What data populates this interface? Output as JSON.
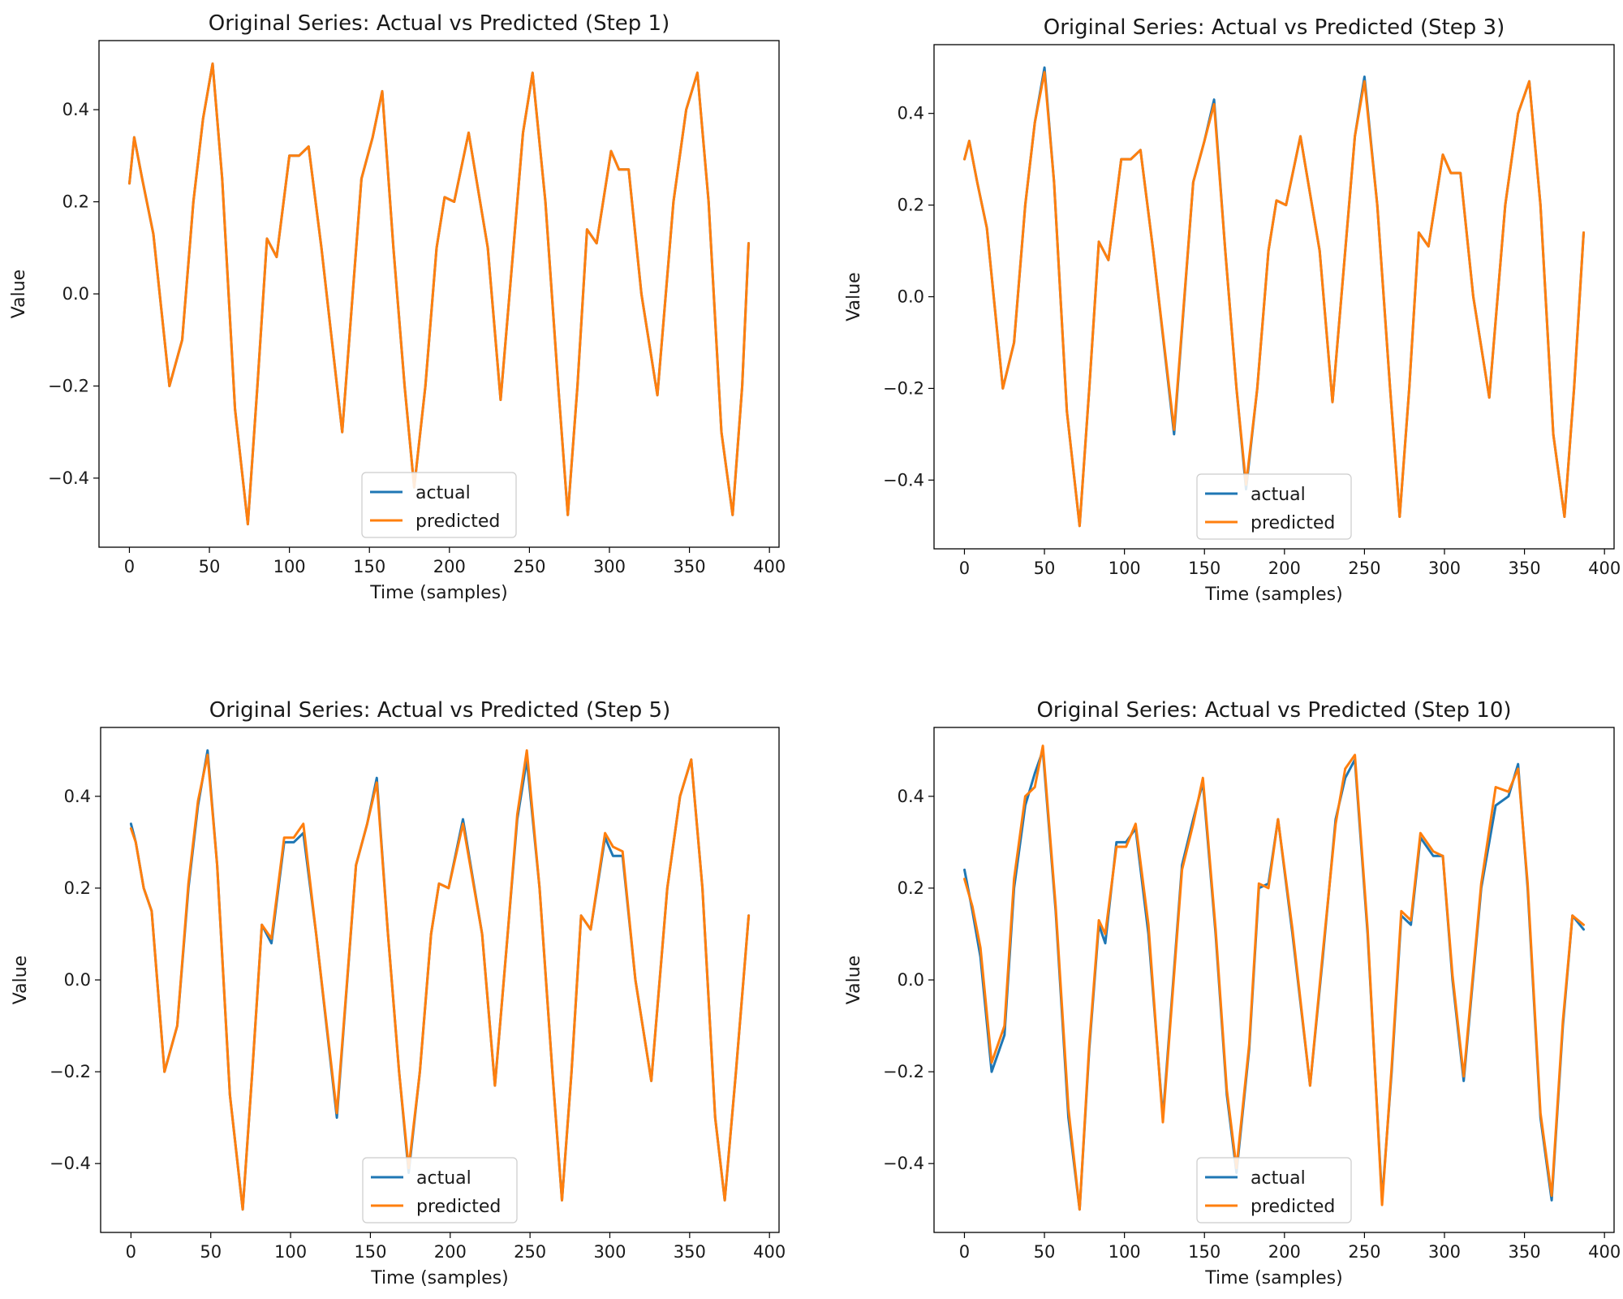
{
  "colors": {
    "actual": "#1f77b4",
    "predicted": "#ff7f0e"
  },
  "chart_data": [
    {
      "type": "line",
      "title": "Original Series: Actual vs Predicted (Step 1)",
      "xlabel": "Time (samples)",
      "ylabel": "Value",
      "xlim": [
        -19,
        406
      ],
      "ylim": [
        -0.55,
        0.55
      ],
      "xticks": [
        0,
        50,
        100,
        150,
        200,
        250,
        300,
        350,
        400
      ],
      "xtick_labels": [
        "0",
        "50",
        "100",
        "150",
        "200",
        "250",
        "300",
        "350",
        "400"
      ],
      "yticks": [
        -0.4,
        -0.2,
        0.0,
        0.2,
        0.4
      ],
      "ytick_labels": [
        "−0.4",
        "−0.2",
        "0.0",
        "0.2",
        "0.4"
      ],
      "legend": {
        "placement": "lower center",
        "entries": [
          "actual",
          "predicted"
        ]
      },
      "series": [
        {
          "name": "actual",
          "x": [
            0,
            3,
            8,
            15,
            25,
            33,
            40,
            46,
            52,
            58,
            66,
            74,
            80,
            86,
            92,
            100,
            106,
            112,
            120,
            133,
            145,
            152,
            158,
            165,
            172,
            178,
            185,
            192,
            197,
            203,
            212,
            224,
            232,
            240,
            246,
            252,
            260,
            268,
            274,
            280,
            286,
            292,
            301,
            306,
            312,
            320,
            330,
            340,
            348,
            355,
            362,
            370,
            377,
            383,
            387
          ],
          "values": [
            0.24,
            0.34,
            0.25,
            0.13,
            -0.2,
            -0.1,
            0.2,
            0.38,
            0.5,
            0.25,
            -0.25,
            -0.5,
            -0.2,
            0.12,
            0.08,
            0.3,
            0.3,
            0.32,
            0.1,
            -0.3,
            0.25,
            0.34,
            0.44,
            0.1,
            -0.2,
            -0.42,
            -0.2,
            0.1,
            0.21,
            0.2,
            0.35,
            0.1,
            -0.23,
            0.1,
            0.35,
            0.48,
            0.2,
            -0.2,
            -0.48,
            -0.2,
            0.14,
            0.11,
            0.31,
            0.27,
            0.27,
            0.0,
            -0.22,
            0.2,
            0.4,
            0.48,
            0.2,
            -0.3,
            -0.48,
            -0.2,
            0.11
          ]
        },
        {
          "name": "predicted",
          "x": [
            0,
            3,
            8,
            15,
            25,
            33,
            40,
            46,
            52,
            58,
            66,
            74,
            80,
            86,
            92,
            100,
            106,
            112,
            120,
            133,
            145,
            152,
            158,
            165,
            172,
            178,
            185,
            192,
            197,
            203,
            212,
            224,
            232,
            240,
            246,
            252,
            260,
            268,
            274,
            280,
            286,
            292,
            301,
            306,
            312,
            320,
            330,
            340,
            348,
            355,
            362,
            370,
            377,
            383,
            387
          ],
          "values": [
            0.24,
            0.34,
            0.25,
            0.13,
            -0.2,
            -0.1,
            0.2,
            0.38,
            0.5,
            0.25,
            -0.25,
            -0.5,
            -0.2,
            0.12,
            0.08,
            0.3,
            0.3,
            0.32,
            0.1,
            -0.3,
            0.25,
            0.34,
            0.44,
            0.1,
            -0.2,
            -0.42,
            -0.2,
            0.1,
            0.21,
            0.2,
            0.35,
            0.1,
            -0.23,
            0.1,
            0.35,
            0.48,
            0.2,
            -0.2,
            -0.48,
            -0.2,
            0.14,
            0.11,
            0.31,
            0.27,
            0.27,
            0.0,
            -0.22,
            0.2,
            0.4,
            0.48,
            0.2,
            -0.3,
            -0.48,
            -0.2,
            0.11
          ]
        }
      ]
    },
    {
      "type": "line",
      "title": "Original Series: Actual vs Predicted (Step 3)",
      "xlabel": "Time (samples)",
      "ylabel": "Value",
      "xlim": [
        -19,
        406
      ],
      "ylim": [
        -0.55,
        0.55
      ],
      "xticks": [
        0,
        50,
        100,
        150,
        200,
        250,
        300,
        350,
        400
      ],
      "xtick_labels": [
        "0",
        "50",
        "100",
        "150",
        "200",
        "250",
        "300",
        "350",
        "400"
      ],
      "yticks": [
        -0.4,
        -0.2,
        0.0,
        0.2,
        0.4
      ],
      "ytick_labels": [
        "−0.4",
        "−0.2",
        "0.0",
        "0.2",
        "0.4"
      ],
      "legend": {
        "placement": "lower center",
        "entries": [
          "actual",
          "predicted"
        ]
      },
      "series": [
        {
          "name": "actual",
          "x": [
            0,
            3,
            8,
            14,
            24,
            31,
            38,
            44,
            50,
            56,
            64,
            72,
            78,
            84,
            90,
            98,
            104,
            110,
            118,
            131,
            143,
            150,
            156,
            163,
            170,
            176,
            183,
            190,
            195,
            201,
            210,
            222,
            230,
            238,
            244,
            250,
            258,
            266,
            272,
            278,
            284,
            290,
            299,
            304,
            310,
            318,
            328,
            338,
            346,
            353,
            360,
            368,
            375,
            381,
            387
          ],
          "values": [
            0.3,
            0.34,
            0.25,
            0.15,
            -0.2,
            -0.1,
            0.2,
            0.38,
            0.5,
            0.25,
            -0.25,
            -0.5,
            -0.2,
            0.12,
            0.08,
            0.3,
            0.3,
            0.32,
            0.1,
            -0.3,
            0.25,
            0.34,
            0.43,
            0.1,
            -0.2,
            -0.42,
            -0.2,
            0.1,
            0.21,
            0.2,
            0.35,
            0.1,
            -0.23,
            0.1,
            0.35,
            0.48,
            0.2,
            -0.2,
            -0.48,
            -0.2,
            0.14,
            0.11,
            0.31,
            0.27,
            0.27,
            0.0,
            -0.22,
            0.2,
            0.4,
            0.47,
            0.2,
            -0.3,
            -0.48,
            -0.2,
            0.14
          ]
        },
        {
          "name": "predicted",
          "x": [
            0,
            3,
            8,
            14,
            24,
            31,
            38,
            44,
            50,
            56,
            64,
            72,
            78,
            84,
            90,
            98,
            104,
            110,
            118,
            131,
            143,
            150,
            156,
            163,
            170,
            176,
            183,
            190,
            195,
            201,
            210,
            222,
            230,
            238,
            244,
            250,
            258,
            266,
            272,
            278,
            284,
            290,
            299,
            304,
            310,
            318,
            328,
            338,
            346,
            353,
            360,
            368,
            375,
            381,
            387
          ],
          "values": [
            0.3,
            0.34,
            0.25,
            0.15,
            -0.2,
            -0.1,
            0.2,
            0.38,
            0.49,
            0.25,
            -0.25,
            -0.5,
            -0.2,
            0.12,
            0.08,
            0.3,
            0.3,
            0.32,
            0.1,
            -0.29,
            0.25,
            0.34,
            0.42,
            0.1,
            -0.2,
            -0.41,
            -0.2,
            0.1,
            0.21,
            0.2,
            0.35,
            0.1,
            -0.23,
            0.1,
            0.35,
            0.47,
            0.2,
            -0.2,
            -0.48,
            -0.2,
            0.14,
            0.11,
            0.31,
            0.27,
            0.27,
            0.0,
            -0.22,
            0.2,
            0.4,
            0.47,
            0.2,
            -0.3,
            -0.48,
            -0.2,
            0.14
          ]
        }
      ]
    },
    {
      "type": "line",
      "title": "Original Series: Actual vs Predicted (Step 5)",
      "xlabel": "Time (samples)",
      "ylabel": "Value",
      "xlim": [
        -19,
        406
      ],
      "ylim": [
        -0.55,
        0.55
      ],
      "xticks": [
        0,
        50,
        100,
        150,
        200,
        250,
        300,
        350,
        400
      ],
      "xtick_labels": [
        "0",
        "50",
        "100",
        "150",
        "200",
        "250",
        "300",
        "350",
        "400"
      ],
      "yticks": [
        -0.4,
        -0.2,
        0.0,
        0.2,
        0.4
      ],
      "ytick_labels": [
        "−0.4",
        "−0.2",
        "0.0",
        "0.2",
        "0.4"
      ],
      "legend": {
        "placement": "lower center",
        "entries": [
          "actual",
          "predicted"
        ]
      },
      "series": [
        {
          "name": "actual",
          "x": [
            0,
            3,
            8,
            13,
            21,
            29,
            36,
            42,
            48,
            54,
            62,
            70,
            76,
            82,
            88,
            96,
            102,
            108,
            116,
            129,
            141,
            148,
            154,
            161,
            168,
            174,
            181,
            188,
            193,
            199,
            208,
            220,
            228,
            236,
            242,
            248,
            256,
            264,
            270,
            276,
            282,
            288,
            297,
            302,
            308,
            316,
            326,
            336,
            344,
            351,
            358,
            366,
            372,
            379,
            387
          ],
          "values": [
            0.34,
            0.3,
            0.2,
            0.15,
            -0.2,
            -0.1,
            0.2,
            0.38,
            0.5,
            0.25,
            -0.25,
            -0.5,
            -0.2,
            0.12,
            0.08,
            0.3,
            0.3,
            0.32,
            0.1,
            -0.3,
            0.25,
            0.34,
            0.44,
            0.1,
            -0.2,
            -0.42,
            -0.2,
            0.1,
            0.21,
            0.2,
            0.35,
            0.1,
            -0.23,
            0.1,
            0.35,
            0.48,
            0.2,
            -0.2,
            -0.48,
            -0.2,
            0.14,
            0.11,
            0.31,
            0.27,
            0.27,
            0.0,
            -0.22,
            0.2,
            0.4,
            0.48,
            0.2,
            -0.3,
            -0.48,
            -0.2,
            0.14
          ]
        },
        {
          "name": "predicted",
          "x": [
            0,
            3,
            8,
            13,
            21,
            29,
            36,
            42,
            48,
            54,
            62,
            70,
            76,
            82,
            88,
            96,
            102,
            108,
            116,
            129,
            141,
            148,
            154,
            161,
            168,
            174,
            181,
            188,
            193,
            199,
            208,
            220,
            228,
            236,
            242,
            248,
            256,
            264,
            270,
            276,
            282,
            288,
            297,
            302,
            308,
            316,
            326,
            336,
            344,
            351,
            358,
            366,
            372,
            379,
            387
          ],
          "values": [
            0.33,
            0.3,
            0.2,
            0.15,
            -0.2,
            -0.1,
            0.21,
            0.39,
            0.49,
            0.25,
            -0.25,
            -0.5,
            -0.2,
            0.12,
            0.09,
            0.31,
            0.31,
            0.34,
            0.1,
            -0.29,
            0.25,
            0.34,
            0.43,
            0.1,
            -0.2,
            -0.41,
            -0.2,
            0.1,
            0.21,
            0.2,
            0.34,
            0.1,
            -0.23,
            0.1,
            0.36,
            0.5,
            0.2,
            -0.2,
            -0.48,
            -0.2,
            0.14,
            0.11,
            0.32,
            0.29,
            0.28,
            0.0,
            -0.22,
            0.2,
            0.4,
            0.48,
            0.2,
            -0.3,
            -0.48,
            -0.2,
            0.14
          ]
        }
      ]
    },
    {
      "type": "line",
      "title": "Original Series: Actual vs Predicted (Step 10)",
      "xlabel": "Time (samples)",
      "ylabel": "Value",
      "xlim": [
        -19,
        406
      ],
      "ylim": [
        -0.55,
        0.55
      ],
      "xticks": [
        0,
        50,
        100,
        150,
        200,
        250,
        300,
        350,
        400
      ],
      "xtick_labels": [
        "0",
        "50",
        "100",
        "150",
        "200",
        "250",
        "300",
        "350",
        "400"
      ],
      "yticks": [
        -0.4,
        -0.2,
        0.0,
        0.2,
        0.4
      ],
      "ytick_labels": [
        "−0.4",
        "−0.2",
        "0.0",
        "0.2",
        "0.4"
      ],
      "legend": {
        "placement": "lower center",
        "entries": [
          "actual",
          "predicted"
        ]
      },
      "series": [
        {
          "name": "actual",
          "x": [
            0,
            5,
            10,
            17,
            25,
            31,
            38,
            44,
            49,
            57,
            65,
            72,
            78,
            84,
            88,
            95,
            101,
            107,
            115,
            124,
            136,
            143,
            149,
            157,
            164,
            170,
            178,
            184,
            190,
            196,
            205,
            216,
            224,
            232,
            238,
            244,
            252,
            261,
            267,
            273,
            279,
            285,
            293,
            299,
            305,
            312,
            323,
            332,
            340,
            346,
            352,
            360,
            367,
            374,
            380,
            387
          ],
          "values": [
            0.24,
            0.15,
            0.05,
            -0.2,
            -0.12,
            0.2,
            0.38,
            0.45,
            0.5,
            0.15,
            -0.3,
            -0.5,
            -0.15,
            0.12,
            0.08,
            0.3,
            0.3,
            0.33,
            0.1,
            -0.3,
            0.25,
            0.35,
            0.43,
            0.1,
            -0.25,
            -0.42,
            -0.15,
            0.2,
            0.21,
            0.35,
            0.1,
            -0.23,
            0.05,
            0.35,
            0.44,
            0.48,
            0.1,
            -0.48,
            -0.2,
            0.14,
            0.12,
            0.31,
            0.27,
            0.27,
            0.0,
            -0.22,
            0.2,
            0.38,
            0.4,
            0.47,
            0.2,
            -0.3,
            -0.48,
            -0.1,
            0.14,
            0.11
          ]
        },
        {
          "name": "predicted",
          "x": [
            0,
            5,
            10,
            17,
            25,
            31,
            38,
            44,
            49,
            57,
            65,
            72,
            78,
            84,
            88,
            95,
            101,
            107,
            115,
            124,
            136,
            143,
            149,
            157,
            164,
            170,
            178,
            184,
            190,
            196,
            205,
            216,
            224,
            232,
            238,
            244,
            252,
            261,
            267,
            273,
            279,
            285,
            293,
            299,
            305,
            312,
            323,
            332,
            340,
            346,
            352,
            360,
            367,
            374,
            380,
            387
          ],
          "values": [
            0.22,
            0.16,
            0.07,
            -0.18,
            -0.1,
            0.22,
            0.4,
            0.42,
            0.51,
            0.16,
            -0.28,
            -0.5,
            -0.14,
            0.13,
            0.1,
            0.29,
            0.29,
            0.34,
            0.12,
            -0.31,
            0.24,
            0.34,
            0.44,
            0.11,
            -0.24,
            -0.41,
            -0.14,
            0.21,
            0.2,
            0.35,
            0.11,
            -0.23,
            0.06,
            0.34,
            0.46,
            0.49,
            0.11,
            -0.49,
            -0.19,
            0.15,
            0.13,
            0.32,
            0.28,
            0.27,
            0.01,
            -0.21,
            0.21,
            0.42,
            0.41,
            0.46,
            0.21,
            -0.29,
            -0.47,
            -0.09,
            0.14,
            0.12
          ]
        }
      ]
    }
  ]
}
